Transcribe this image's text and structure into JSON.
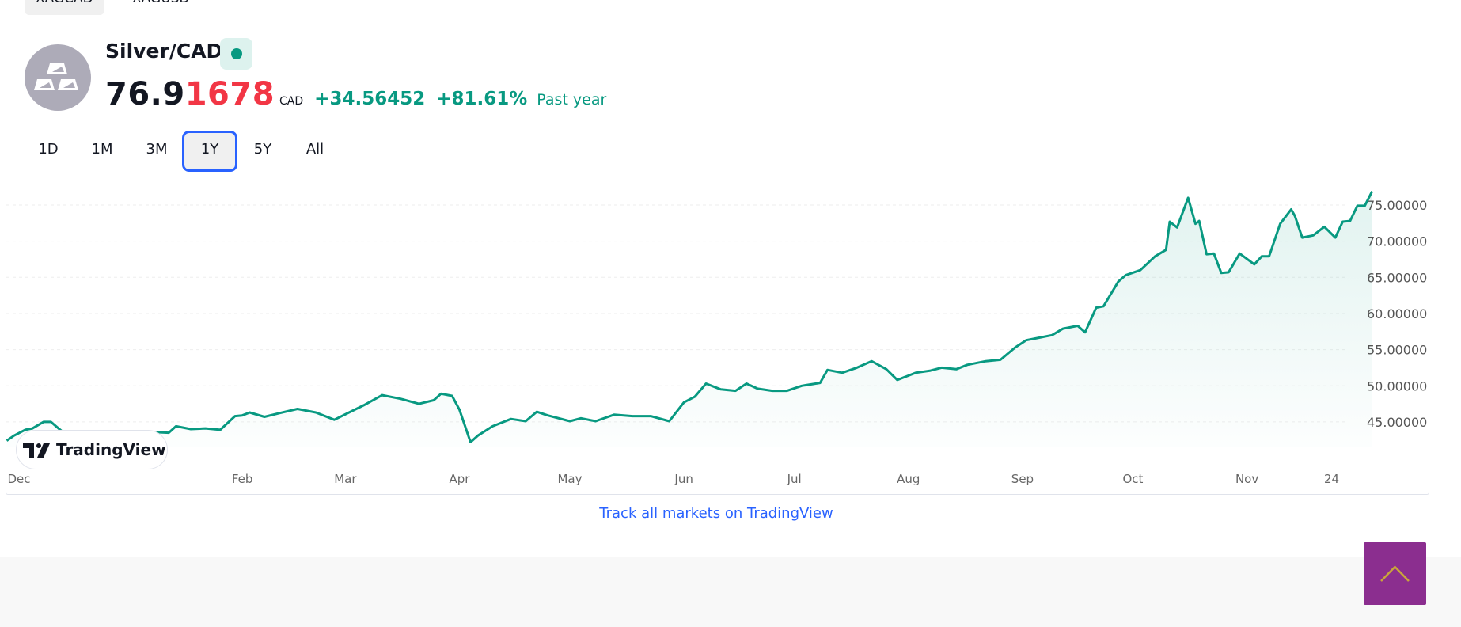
{
  "symbol_tabs": [
    {
      "label": "XAGCAD",
      "active": true
    },
    {
      "label": "XAGUSD",
      "active": false
    }
  ],
  "header": {
    "title": "Silver/CAD",
    "status": "market-open",
    "price_main": "76.9",
    "price_tail": "1678",
    "currency": "CAD",
    "change_abs": "+34.56452",
    "change_pct": "+81.61%",
    "period": "Past year"
  },
  "ranges": [
    {
      "label": "1D"
    },
    {
      "label": "1M"
    },
    {
      "label": "3M"
    },
    {
      "label": "1Y",
      "active": true
    },
    {
      "label": "5Y"
    },
    {
      "label": "All"
    }
  ],
  "colors": {
    "line": "#089981",
    "negative": "#f23645",
    "accent": "#2962ff",
    "scroll_top_bg": "#8b2e8f",
    "scroll_top_icon": "#c9a53a"
  },
  "chart_data": {
    "type": "area",
    "y_ticks": [
      "45.00000",
      "50.00000",
      "55.00000",
      "60.00000",
      "65.00000",
      "70.00000",
      "75.00000"
    ],
    "y_tick_values": [
      45,
      50,
      55,
      60,
      65,
      70,
      75
    ],
    "ylim": [
      41.5,
      79.5
    ],
    "x_ticks": [
      {
        "label": "Dec",
        "date": "2024-12-01"
      },
      {
        "label": "Feb",
        "date": "2025-02-01"
      },
      {
        "label": "Mar",
        "date": "2025-03-01"
      },
      {
        "label": "Apr",
        "date": "2025-04-01"
      },
      {
        "label": "May",
        "date": "2025-05-01"
      },
      {
        "label": "Jun",
        "date": "2025-06-01"
      },
      {
        "label": "Jul",
        "date": "2025-07-01"
      },
      {
        "label": "Aug",
        "date": "2025-08-01"
      },
      {
        "label": "Sep",
        "date": "2025-09-01"
      },
      {
        "label": "Oct",
        "date": "2025-10-01"
      },
      {
        "label": "Nov",
        "date": "2025-11-01"
      },
      {
        "label": "24",
        "date": "2025-11-24"
      }
    ],
    "grid": true,
    "series": [
      {
        "points": [
          [
            "2024-11-29",
            42.4
          ],
          [
            "2024-12-01",
            43.1
          ],
          [
            "2024-12-04",
            43.9
          ],
          [
            "2024-12-06",
            44.1
          ],
          [
            "2024-12-09",
            45.0
          ],
          [
            "2024-12-11",
            45.0
          ],
          [
            "2024-12-14",
            43.7
          ],
          [
            "2024-12-17",
            43.6
          ],
          [
            "2024-12-19",
            42.3
          ],
          [
            "2024-12-22",
            42.8
          ],
          [
            "2024-12-25",
            43.1
          ],
          [
            "2024-12-28",
            41.9
          ],
          [
            "2025-01-01",
            43.0
          ],
          [
            "2025-01-04",
            43.3
          ],
          [
            "2025-01-08",
            43.6
          ],
          [
            "2025-01-12",
            43.5
          ],
          [
            "2025-01-14",
            44.4
          ],
          [
            "2025-01-18",
            44.0
          ],
          [
            "2025-01-22",
            44.1
          ],
          [
            "2025-01-26",
            43.9
          ],
          [
            "2025-01-30",
            45.8
          ],
          [
            "2025-02-01",
            45.9
          ],
          [
            "2025-02-03",
            46.3
          ],
          [
            "2025-02-07",
            45.7
          ],
          [
            "2025-02-11",
            46.2
          ],
          [
            "2025-02-16",
            46.8
          ],
          [
            "2025-02-21",
            46.3
          ],
          [
            "2025-02-26",
            45.3
          ],
          [
            "2025-03-02",
            46.3
          ],
          [
            "2025-03-06",
            47.3
          ],
          [
            "2025-03-11",
            48.7
          ],
          [
            "2025-03-16",
            48.2
          ],
          [
            "2025-03-21",
            47.5
          ],
          [
            "2025-03-25",
            48.0
          ],
          [
            "2025-03-27",
            48.9
          ],
          [
            "2025-03-30",
            48.6
          ],
          [
            "2025-04-01",
            46.7
          ],
          [
            "2025-04-04",
            42.2
          ],
          [
            "2025-04-06",
            43.1
          ],
          [
            "2025-04-10",
            44.4
          ],
          [
            "2025-04-15",
            45.4
          ],
          [
            "2025-04-19",
            45.1
          ],
          [
            "2025-04-22",
            46.4
          ],
          [
            "2025-04-25",
            45.9
          ],
          [
            "2025-05-01",
            45.1
          ],
          [
            "2025-05-04",
            45.5
          ],
          [
            "2025-05-08",
            45.1
          ],
          [
            "2025-05-13",
            46.0
          ],
          [
            "2025-05-18",
            45.8
          ],
          [
            "2025-05-23",
            45.8
          ],
          [
            "2025-05-28",
            45.1
          ],
          [
            "2025-06-01",
            47.7
          ],
          [
            "2025-06-04",
            48.5
          ],
          [
            "2025-06-07",
            50.3
          ],
          [
            "2025-06-11",
            49.5
          ],
          [
            "2025-06-15",
            49.3
          ],
          [
            "2025-06-18",
            50.3
          ],
          [
            "2025-06-21",
            49.6
          ],
          [
            "2025-06-25",
            49.3
          ],
          [
            "2025-06-29",
            49.3
          ],
          [
            "2025-07-03",
            50.0
          ],
          [
            "2025-07-08",
            50.4
          ],
          [
            "2025-07-10",
            52.2
          ],
          [
            "2025-07-14",
            51.8
          ],
          [
            "2025-07-18",
            52.5
          ],
          [
            "2025-07-22",
            53.4
          ],
          [
            "2025-07-26",
            52.3
          ],
          [
            "2025-07-29",
            50.8
          ],
          [
            "2025-08-03",
            51.8
          ],
          [
            "2025-08-07",
            52.1
          ],
          [
            "2025-08-10",
            52.5
          ],
          [
            "2025-08-14",
            52.3
          ],
          [
            "2025-08-17",
            52.9
          ],
          [
            "2025-08-22",
            53.4
          ],
          [
            "2025-08-26",
            53.6
          ],
          [
            "2025-08-30",
            55.3
          ],
          [
            "2025-09-02",
            56.3
          ],
          [
            "2025-09-05",
            56.6
          ],
          [
            "2025-09-09",
            57.0
          ],
          [
            "2025-09-12",
            57.9
          ],
          [
            "2025-09-16",
            58.3
          ],
          [
            "2025-09-18",
            57.4
          ],
          [
            "2025-09-21",
            60.8
          ],
          [
            "2025-09-23",
            61.0
          ],
          [
            "2025-09-27",
            64.4
          ],
          [
            "2025-09-29",
            65.3
          ],
          [
            "2025-10-03",
            66.0
          ],
          [
            "2025-10-07",
            67.9
          ],
          [
            "2025-10-10",
            68.8
          ],
          [
            "2025-10-11",
            72.7
          ],
          [
            "2025-10-13",
            71.9
          ],
          [
            "2025-10-16",
            76.0
          ],
          [
            "2025-10-18",
            72.4
          ],
          [
            "2025-10-19",
            72.8
          ],
          [
            "2025-10-21",
            68.2
          ],
          [
            "2025-10-23",
            68.3
          ],
          [
            "2025-10-25",
            65.6
          ],
          [
            "2025-10-27",
            65.7
          ],
          [
            "2025-10-30",
            68.3
          ],
          [
            "2025-11-03",
            66.8
          ],
          [
            "2025-11-05",
            67.9
          ],
          [
            "2025-11-07",
            67.9
          ],
          [
            "2025-11-10",
            72.4
          ],
          [
            "2025-11-13",
            74.4
          ],
          [
            "2025-11-14",
            73.5
          ],
          [
            "2025-11-16",
            70.5
          ],
          [
            "2025-11-19",
            70.8
          ],
          [
            "2025-11-22",
            72.0
          ],
          [
            "2025-11-25",
            70.5
          ],
          [
            "2025-11-27",
            72.7
          ],
          [
            "2025-11-29",
            72.8
          ],
          [
            "2025-12-01",
            74.9
          ],
          [
            "2025-12-03",
            74.9
          ],
          [
            "2025-12-05",
            76.9
          ]
        ]
      }
    ]
  },
  "branding": {
    "tradingview_logo": "TradingView"
  },
  "link": {
    "label": "Track all markets on TradingView"
  },
  "scroll_top": {
    "icon": "chevron-up-icon"
  }
}
